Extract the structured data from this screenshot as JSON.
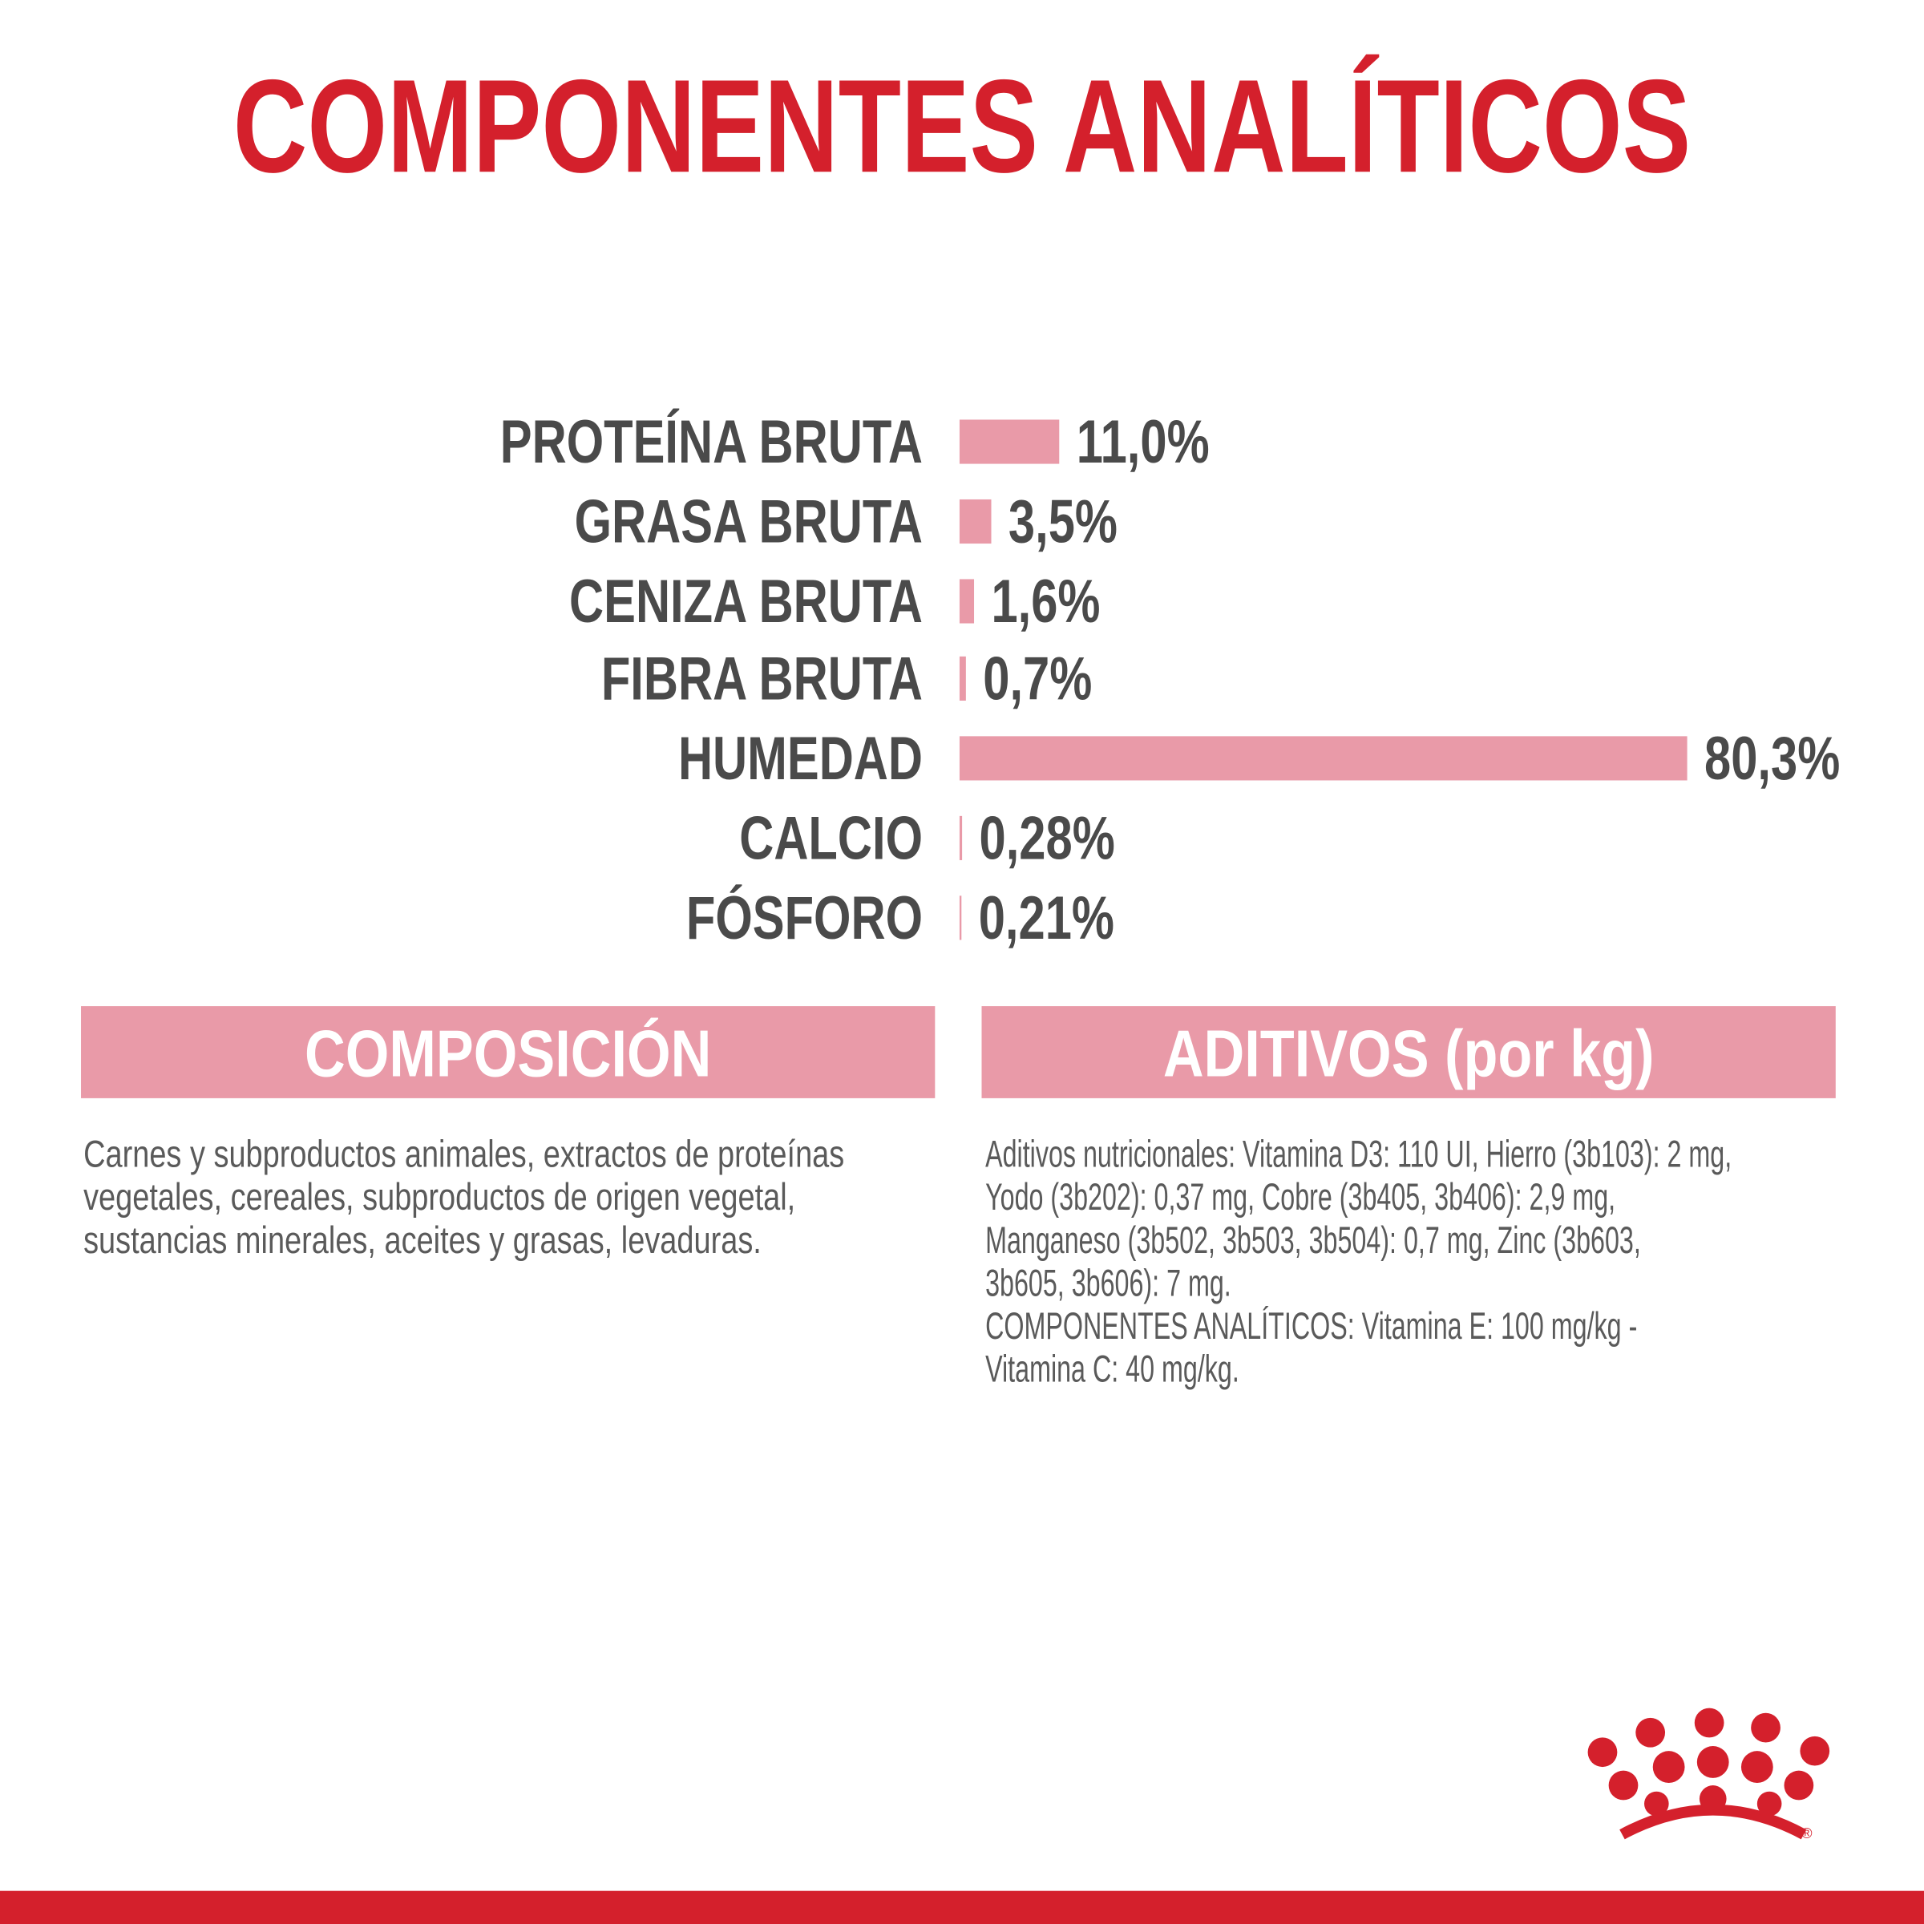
{
  "chart_data": {
    "type": "bar",
    "orientation": "horizontal",
    "title": "COMPONENTES ANALÍTICOS",
    "categories": [
      "PROTEÍNA BRUTA",
      "GRASA BRUTA",
      "CENIZA BRUTA",
      "FIBRA BRUTA",
      "HUMEDAD",
      "CALCIO",
      "FÓSFORO"
    ],
    "values": [
      11.0,
      3.5,
      1.6,
      0.7,
      80.3,
      0.28,
      0.21
    ],
    "value_labels": [
      "11,0%",
      "3,5%",
      "1,6%",
      "0,7%",
      "80,3%",
      "0,28%",
      "0,21%"
    ],
    "color": "#e99aa8"
  },
  "sections": [
    {
      "heading": "COMPOSICIÓN",
      "lines": [
        "Carnes y subproductos animales, extractos de proteínas",
        "vegetales, cereales, subproductos de origen vegetal,",
        "sustancias minerales, aceites y grasas, levaduras."
      ]
    },
    {
      "heading": "ADITIVOS (por kg)",
      "lines": [
        "Aditivos nutricionales: Vitamina D3: 110 UI, Hierro (3b103): 2 mg,",
        "Yodo (3b202): 0,37 mg, Cobre (3b405, 3b406): 2,9 mg,",
        "Manganeso (3b502, 3b503, 3b504): 0,7 mg, Zinc (3b603,",
        "3b605, 3b606): 7 mg.",
        "COMPONENTES ANALÍTICOS: Vitamina E: 100 mg/kg -",
        "Vitamina C: 40 mg/kg."
      ]
    }
  ],
  "logo": {
    "mark": "®"
  }
}
